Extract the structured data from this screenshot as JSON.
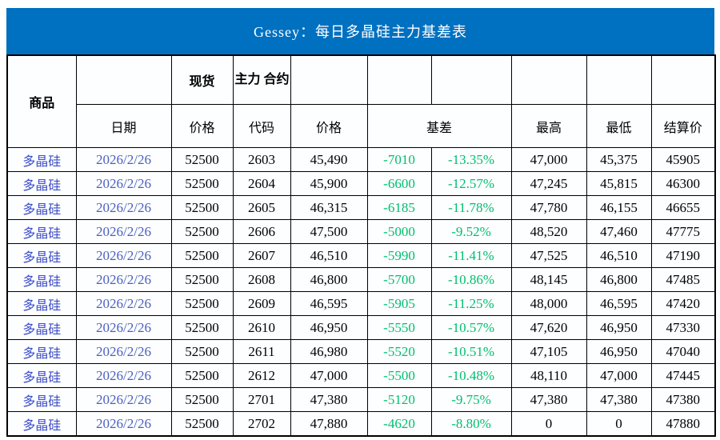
{
  "title": "Gessey：每日多晶硅主力基差表",
  "colors": {
    "title_bg": "#0070C0",
    "header_fill": "#E9EFF9",
    "basis_green": "#00BE6E",
    "commodity_blue": "#3B4CC8",
    "date_blue": "#4A5FBE"
  },
  "header": {
    "commodity": "商品",
    "date": "日期",
    "spot": "现货",
    "main_contract": "主力\n合约",
    "price_spot": "价格",
    "code": "代码",
    "price_main": "价格",
    "basis": "基差",
    "high": "最高",
    "low": "最低",
    "settlement": "结算价"
  },
  "rows": [
    {
      "commodity": "多晶硅",
      "date": "2026/2/26",
      "spot_price": "52500",
      "code": "2603",
      "price": "45,490",
      "basis": "-7010",
      "basis_pct": "-13.35%",
      "high": "47,000",
      "low": "45,375",
      "settle": "45905"
    },
    {
      "commodity": "多晶硅",
      "date": "2026/2/26",
      "spot_price": "52500",
      "code": "2604",
      "price": "45,900",
      "basis": "-6600",
      "basis_pct": "-12.57%",
      "high": "47,245",
      "low": "45,815",
      "settle": "46300"
    },
    {
      "commodity": "多晶硅",
      "date": "2026/2/26",
      "spot_price": "52500",
      "code": "2605",
      "price": "46,315",
      "basis": "-6185",
      "basis_pct": "-11.78%",
      "high": "47,780",
      "low": "46,155",
      "settle": "46655"
    },
    {
      "commodity": "多晶硅",
      "date": "2026/2/26",
      "spot_price": "52500",
      "code": "2606",
      "price": "47,500",
      "basis": "-5000",
      "basis_pct": "-9.52%",
      "high": "48,520",
      "low": "47,460",
      "settle": "47775"
    },
    {
      "commodity": "多晶硅",
      "date": "2026/2/26",
      "spot_price": "52500",
      "code": "2607",
      "price": "46,510",
      "basis": "-5990",
      "basis_pct": "-11.41%",
      "high": "47,525",
      "low": "46,510",
      "settle": "47190"
    },
    {
      "commodity": "多晶硅",
      "date": "2026/2/26",
      "spot_price": "52500",
      "code": "2608",
      "price": "46,800",
      "basis": "-5700",
      "basis_pct": "-10.86%",
      "high": "48,145",
      "low": "46,800",
      "settle": "47485"
    },
    {
      "commodity": "多晶硅",
      "date": "2026/2/26",
      "spot_price": "52500",
      "code": "2609",
      "price": "46,595",
      "basis": "-5905",
      "basis_pct": "-11.25%",
      "high": "48,000",
      "low": "46,595",
      "settle": "47420"
    },
    {
      "commodity": "多晶硅",
      "date": "2026/2/26",
      "spot_price": "52500",
      "code": "2610",
      "price": "46,950",
      "basis": "-5550",
      "basis_pct": "-10.57%",
      "high": "47,620",
      "low": "46,950",
      "settle": "47330"
    },
    {
      "commodity": "多晶硅",
      "date": "2026/2/26",
      "spot_price": "52500",
      "code": "2611",
      "price": "46,980",
      "basis": "-5520",
      "basis_pct": "-10.51%",
      "high": "47,105",
      "low": "46,950",
      "settle": "47040"
    },
    {
      "commodity": "多晶硅",
      "date": "2026/2/26",
      "spot_price": "52500",
      "code": "2612",
      "price": "47,000",
      "basis": "-5500",
      "basis_pct": "-10.48%",
      "high": "48,110",
      "low": "47,000",
      "settle": "47445"
    },
    {
      "commodity": "多晶硅",
      "date": "2026/2/26",
      "spot_price": "52500",
      "code": "2701",
      "price": "47,380",
      "basis": "-5120",
      "basis_pct": "-9.75%",
      "high": "47,380",
      "low": "47,380",
      "settle": "47380"
    },
    {
      "commodity": "多晶硅",
      "date": "2026/2/26",
      "spot_price": "52500",
      "code": "2702",
      "price": "47,880",
      "basis": "-4620",
      "basis_pct": "-8.80%",
      "high": "0",
      "low": "0",
      "settle": "47880"
    }
  ]
}
